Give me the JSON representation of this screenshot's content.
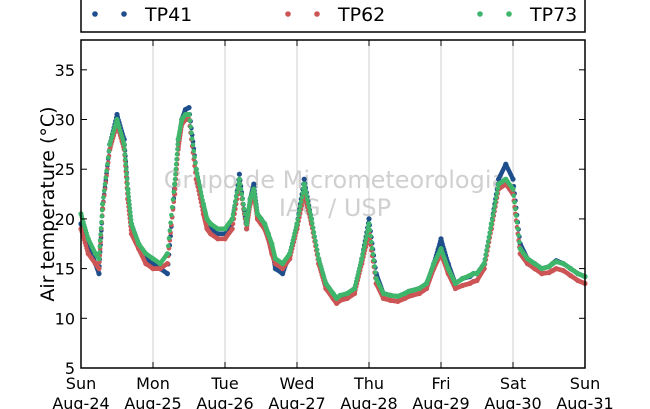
{
  "watermark": [
    "Grupo de Micrometeorologia",
    "IAG / USP"
  ],
  "chart_data": {
    "type": "scatter",
    "title": "",
    "xlabel": "",
    "ylabel": "Air temperature (°C)",
    "ylim": [
      5,
      38
    ],
    "yticks": [
      5,
      10,
      15,
      20,
      25,
      30,
      35
    ],
    "xlim": [
      0,
      7
    ],
    "xticks": [
      {
        "x": 0,
        "day": "Sun",
        "date": "Aug-24"
      },
      {
        "x": 1,
        "day": "Mon",
        "date": "Aug-25"
      },
      {
        "x": 2,
        "day": "Tue",
        "date": "Aug-26"
      },
      {
        "x": 3,
        "day": "Wed",
        "date": "Aug-27"
      },
      {
        "x": 4,
        "day": "Thu",
        "date": "Aug-28"
      },
      {
        "x": 5,
        "day": "Fri",
        "date": "Aug-29"
      },
      {
        "x": 6,
        "day": "Sat",
        "date": "Aug-30"
      },
      {
        "x": 7,
        "day": "Sun",
        "date": "Aug-31"
      }
    ],
    "grid": "vertical",
    "legend_position": "top",
    "x": [
      0.0,
      0.1,
      0.2,
      0.25,
      0.3,
      0.4,
      0.5,
      0.6,
      0.65,
      0.7,
      0.8,
      0.9,
      1.0,
      1.1,
      1.2,
      1.3,
      1.35,
      1.4,
      1.45,
      1.5,
      1.6,
      1.7,
      1.75,
      1.8,
      1.9,
      2.0,
      2.1,
      2.2,
      2.3,
      2.35,
      2.4,
      2.45,
      2.5,
      2.55,
      2.6,
      2.65,
      2.7,
      2.8,
      2.9,
      3.0,
      3.1,
      3.2,
      3.3,
      3.4,
      3.5,
      3.55,
      3.6,
      3.7,
      3.8,
      3.9,
      4.0,
      4.1,
      4.2,
      4.3,
      4.4,
      4.5,
      4.55,
      4.6,
      4.7,
      4.8,
      4.9,
      5.0,
      5.1,
      5.2,
      5.3,
      5.4,
      5.45,
      5.5,
      5.6,
      5.7,
      5.8,
      5.9,
      6.0,
      6.1,
      6.2,
      6.3,
      6.4,
      6.5,
      6.55,
      6.6,
      6.7,
      6.8,
      6.9,
      7.0
    ],
    "series": [
      {
        "name": "TP41",
        "color": "#1f4e8c",
        "values": [
          19.5,
          17.5,
          15.5,
          14.5,
          21.0,
          27.5,
          30.5,
          28.0,
          23.0,
          19.5,
          17.5,
          16.0,
          15.5,
          15.0,
          14.5,
          23.0,
          27.5,
          30.0,
          31.0,
          31.2,
          25.0,
          21.0,
          19.5,
          19.0,
          18.5,
          18.5,
          19.5,
          24.5,
          19.0,
          22.0,
          23.5,
          20.5,
          20.0,
          19.5,
          18.5,
          17.0,
          15.0,
          14.5,
          16.5,
          19.5,
          24.0,
          20.0,
          16.0,
          13.5,
          12.5,
          12.0,
          12.2,
          12.5,
          13.0,
          16.0,
          20.0,
          14.5,
          12.5,
          12.3,
          12.2,
          12.5,
          12.7,
          12.8,
          13.0,
          13.5,
          15.5,
          18.0,
          15.5,
          13.5,
          14.0,
          14.2,
          14.5,
          14.5,
          15.5,
          19.5,
          24.0,
          25.5,
          24.0,
          17.5,
          16.0,
          15.5,
          15.0,
          15.2,
          15.5,
          15.8,
          15.5,
          15.0,
          14.5,
          14.2
        ]
      },
      {
        "name": "TP62",
        "color": "#cc5555",
        "values": [
          19.0,
          16.5,
          15.5,
          15.0,
          21.0,
          27.0,
          29.5,
          27.0,
          22.0,
          18.5,
          17.0,
          15.5,
          15.0,
          15.0,
          15.5,
          22.5,
          27.0,
          29.5,
          30.0,
          30.0,
          24.0,
          20.5,
          19.0,
          18.5,
          18.0,
          18.0,
          19.0,
          23.5,
          19.0,
          21.5,
          22.5,
          20.0,
          19.5,
          19.0,
          18.0,
          16.5,
          15.5,
          15.0,
          16.0,
          19.0,
          22.5,
          19.5,
          15.5,
          13.0,
          12.0,
          11.5,
          11.8,
          12.0,
          12.5,
          15.5,
          18.5,
          13.5,
          12.0,
          11.8,
          11.7,
          12.0,
          12.2,
          12.3,
          12.5,
          13.0,
          15.0,
          16.5,
          14.5,
          13.0,
          13.3,
          13.5,
          13.7,
          13.8,
          15.0,
          19.0,
          23.0,
          23.5,
          22.5,
          16.5,
          15.5,
          15.0,
          14.5,
          14.6,
          14.8,
          15.0,
          14.8,
          14.3,
          13.8,
          13.5
        ]
      },
      {
        "name": "TP73",
        "color": "#3fb66b",
        "values": [
          20.5,
          18.0,
          16.5,
          16.0,
          21.5,
          27.5,
          30.0,
          27.5,
          23.0,
          19.5,
          17.5,
          16.5,
          16.0,
          15.5,
          16.5,
          23.5,
          28.0,
          30.0,
          30.5,
          30.5,
          25.0,
          21.5,
          20.0,
          19.5,
          19.0,
          19.0,
          20.0,
          24.0,
          19.5,
          22.0,
          23.0,
          20.5,
          20.0,
          19.5,
          18.5,
          17.5,
          16.0,
          15.5,
          16.5,
          19.5,
          23.5,
          20.0,
          16.0,
          13.5,
          12.5,
          12.0,
          12.3,
          12.5,
          13.0,
          16.0,
          19.5,
          14.0,
          12.5,
          12.3,
          12.2,
          12.5,
          12.7,
          12.8,
          13.0,
          13.5,
          15.5,
          17.0,
          15.0,
          13.5,
          14.0,
          14.3,
          14.5,
          14.5,
          15.5,
          19.5,
          23.5,
          24.0,
          23.0,
          17.0,
          16.0,
          15.5,
          15.0,
          15.2,
          15.5,
          15.7,
          15.5,
          15.0,
          14.5,
          14.2
        ]
      }
    ]
  }
}
